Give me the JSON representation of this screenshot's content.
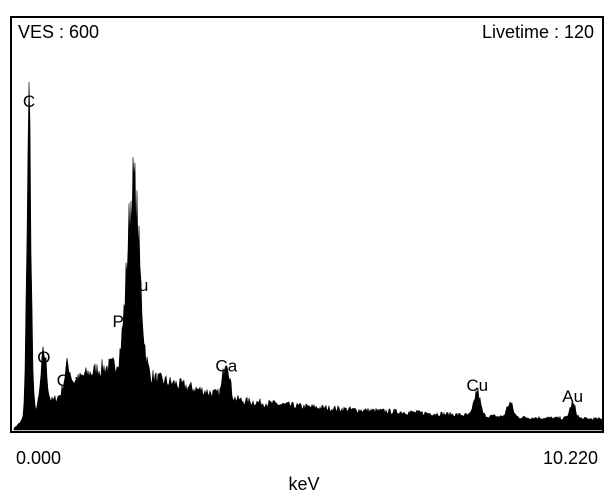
{
  "chart_data": {
    "type": "area",
    "title": "",
    "header_left": "VES : 600",
    "header_right": "Livetime : 120",
    "xlabel": "keV",
    "ylabel": "",
    "xlim": [
      0.0,
      10.22
    ],
    "ylim": [
      0,
      100
    ],
    "x_tick_labels": [
      "0.000",
      "10.220"
    ],
    "grid": false,
    "legend": "none",
    "fill_color": "#000000",
    "background": {
      "x": [
        0.0,
        0.3,
        0.6,
        0.9,
        1.2,
        1.5,
        1.8,
        2.1,
        2.5,
        3.0,
        3.5,
        4.0,
        5.0,
        6.0,
        7.0,
        8.0,
        9.0,
        10.22
      ],
      "y": [
        0.5,
        5,
        7,
        11,
        15,
        17,
        18,
        17,
        14,
        12,
        10,
        8,
        6.5,
        5.5,
        4.8,
        4.0,
        3.4,
        3.0
      ]
    },
    "peaks": [
      {
        "label": "C",
        "energy": 0.26,
        "height": 88
      },
      {
        "label": "O",
        "energy": 0.52,
        "height": 17
      },
      {
        "label": "Cu",
        "energy": 0.93,
        "height": 10
      },
      {
        "label": "P",
        "energy": 2.02,
        "height": 32
      },
      {
        "label": "Au",
        "energy": 2.12,
        "height": 37
      },
      {
        "label": "Ca",
        "energy": 3.69,
        "height": 14
      },
      {
        "label": "Cu",
        "energy": 8.05,
        "height": 8
      },
      {
        "label": "",
        "energy": 8.62,
        "height": 5
      },
      {
        "label": "Au",
        "energy": 9.71,
        "height": 5
      }
    ]
  }
}
